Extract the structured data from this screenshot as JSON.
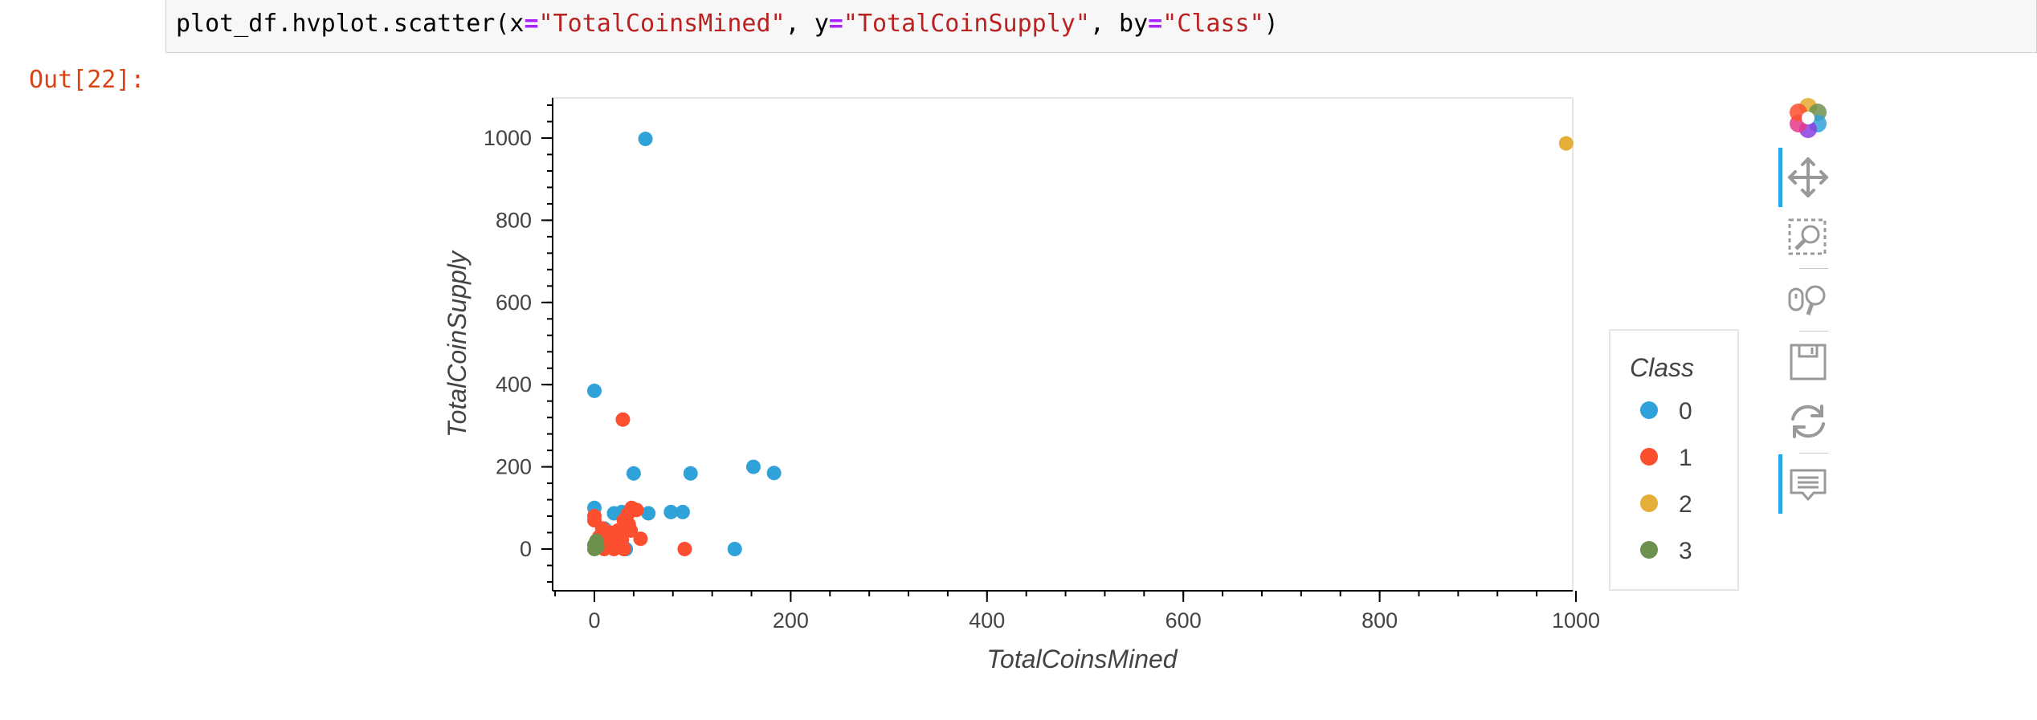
{
  "code": {
    "obj": "plot_df.hvplot.scatter(",
    "arg1_key": "x",
    "eq": "=",
    "arg1_val": "\"TotalCoinsMined\"",
    "sep1": ", ",
    "arg2_key": "y",
    "arg2_val": "\"TotalCoinSupply\"",
    "sep2": ", ",
    "arg3_key": "by",
    "arg3_val": "\"Class\"",
    "close": ")"
  },
  "output_prompt": "Out[22]:",
  "toolbar": {
    "items": [
      "bokeh-logo",
      "pan-tool",
      "box-zoom-tool",
      "wheel-zoom-tool",
      "save-tool",
      "reset-tool",
      "hover-tool"
    ]
  },
  "chart_data": {
    "type": "scatter",
    "title": "",
    "xlabel": "TotalCoinsMined",
    "ylabel": "TotalCoinSupply",
    "xlim": [
      -42,
      1035
    ],
    "ylim": [
      -100,
      1100
    ],
    "xticks": [
      0,
      200,
      400,
      600,
      800,
      1000
    ],
    "yticks": [
      0,
      200,
      400,
      600,
      800,
      1000
    ],
    "grid": false,
    "legend": {
      "title": "Class",
      "placement": "right"
    },
    "series": [
      {
        "name": "0",
        "color": "#30a2da",
        "points": [
          [
            52,
            998
          ],
          [
            0,
            385
          ],
          [
            0,
            100
          ],
          [
            40,
            184
          ],
          [
            98,
            184
          ],
          [
            162,
            200
          ],
          [
            183,
            185
          ],
          [
            20,
            87
          ],
          [
            28,
            90
          ],
          [
            55,
            87
          ],
          [
            78,
            90
          ],
          [
            90,
            90
          ],
          [
            10,
            50
          ],
          [
            25,
            30
          ],
          [
            32,
            0
          ],
          [
            143,
            0
          ],
          [
            5,
            10
          ]
        ]
      },
      {
        "name": "1",
        "color": "#fc4f30",
        "points": [
          [
            29,
            315
          ],
          [
            0,
            80
          ],
          [
            0,
            70
          ],
          [
            38,
            100
          ],
          [
            43,
            95
          ],
          [
            34,
            85
          ],
          [
            30,
            70
          ],
          [
            8,
            50
          ],
          [
            16,
            40
          ],
          [
            24,
            45
          ],
          [
            37,
            45
          ],
          [
            47,
            25
          ],
          [
            12,
            20
          ],
          [
            20,
            25
          ],
          [
            28,
            22
          ],
          [
            14,
            10
          ],
          [
            22,
            5
          ],
          [
            10,
            0
          ],
          [
            20,
            0
          ],
          [
            30,
            0
          ],
          [
            92,
            0
          ],
          [
            5,
            30
          ],
          [
            18,
            15
          ],
          [
            35,
            60
          ]
        ]
      },
      {
        "name": "2",
        "color": "#e5ae38",
        "points": [
          [
            990,
            987
          ]
        ]
      },
      {
        "name": "3",
        "color": "#6d904f",
        "points": [
          [
            0,
            0
          ],
          [
            0,
            10
          ],
          [
            3,
            5
          ],
          [
            2,
            20
          ]
        ]
      }
    ]
  }
}
